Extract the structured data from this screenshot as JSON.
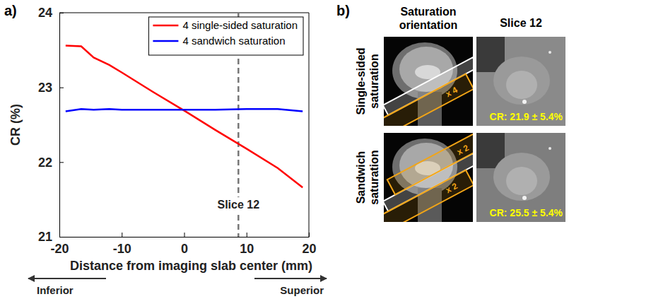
{
  "chart_data": {
    "type": "line",
    "panel_label": "a)",
    "x_label": "Distance from imaging slab center (mm)",
    "y_label": "CR (%)",
    "x": [
      -19,
      -16.5,
      -14.5,
      -12,
      -10,
      -5,
      0,
      5,
      10,
      15,
      19
    ],
    "series": [
      {
        "name": "4 single-sided saturation",
        "color": "#ff0000",
        "line_style": "solid",
        "values": [
          23.56,
          23.55,
          23.4,
          23.3,
          23.2,
          22.94,
          22.69,
          22.43,
          22.18,
          21.92,
          21.66
        ]
      },
      {
        "name": "4 sandwich saturation",
        "color": "#0000ff",
        "line_style": "solid",
        "values": [
          22.68,
          22.71,
          22.7,
          22.71,
          22.7,
          22.7,
          22.7,
          22.7,
          22.71,
          22.71,
          22.68
        ]
      }
    ],
    "xlim": [
      -20,
      20
    ],
    "xticks": [
      -20,
      -10,
      0,
      10,
      20
    ],
    "ylim": [
      21,
      24
    ],
    "yticks": [
      21,
      22,
      23,
      24
    ],
    "grid": false,
    "legend": "upper right",
    "annotations": [
      {
        "text": "Slice 12",
        "x": 8.7,
        "line_style": "dashed"
      }
    ],
    "direction_labels": {
      "left": "Inferior",
      "right": "Superior"
    }
  },
  "panel_b": {
    "label": "b)",
    "column_heads": [
      "Saturation orientation",
      "Slice 12"
    ],
    "rows": [
      {
        "label": "Single-sided saturation",
        "slab_counts": [
          "x 4"
        ],
        "cr": "CR: 21.9 ± 5.4%"
      },
      {
        "label": "Sandwich saturation",
        "slab_counts": [
          "x 2",
          "x 2"
        ],
        "cr": "CR: 25.5 ± 5.4%"
      }
    ]
  }
}
